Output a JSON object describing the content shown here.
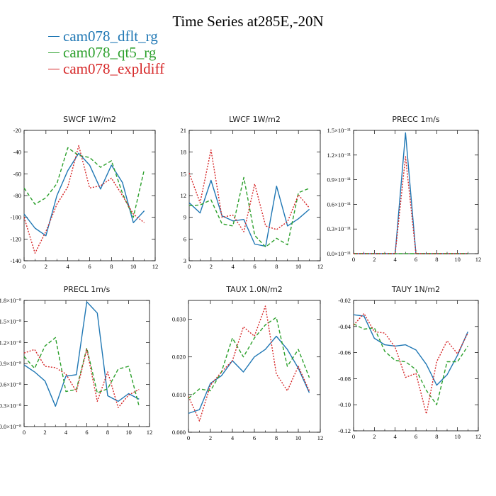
{
  "title": "Time Series at285E,-20N",
  "legend": [
    {
      "name": "cam078_dflt_rg",
      "color": "#1f77b4"
    },
    {
      "name": "cam078_qt5_rg",
      "color": "#2ca02c"
    },
    {
      "name": "cam078_expldiff",
      "color": "#d62728"
    }
  ],
  "chart_data": [
    {
      "type": "line",
      "title": "SWCF   1W/m2",
      "x": [
        0,
        1,
        2,
        3,
        4,
        5,
        6,
        7,
        8,
        9,
        10,
        11
      ],
      "xlim": [
        0,
        12
      ],
      "xticks": [
        "0",
        "2",
        "4",
        "6",
        "8",
        "10",
        "12"
      ],
      "xtick_values": [
        0,
        2,
        4,
        6,
        8,
        10,
        12
      ],
      "ylim": [
        -140,
        -20
      ],
      "yticks": [
        "-140",
        "-120",
        "-100",
        "-80",
        "-60",
        "-40",
        "-20"
      ],
      "ytick_values": [
        -140,
        -120,
        -100,
        -80,
        -60,
        -40,
        -20
      ],
      "series": [
        {
          "name": "cam078_dflt_rg",
          "values": [
            -97,
            -110,
            -117,
            -80,
            -57,
            -41,
            -52,
            -74,
            -52,
            -68,
            -105,
            -94
          ]
        },
        {
          "name": "cam078_qt5_rg",
          "values": [
            -73,
            -88,
            -82,
            -69,
            -36,
            -43,
            -45,
            -54,
            -48,
            -78,
            -100,
            -56
          ]
        },
        {
          "name": "cam078_expldiff",
          "values": [
            -100,
            -133,
            -113,
            -88,
            -72,
            -34,
            -73,
            -71,
            -64,
            -80,
            -97,
            -105
          ]
        }
      ]
    },
    {
      "type": "line",
      "title": "LWCF   1W/m2",
      "x": [
        0,
        1,
        2,
        3,
        4,
        5,
        6,
        7,
        8,
        9,
        10,
        11
      ],
      "xlim": [
        0,
        12
      ],
      "xticks": [
        "0",
        "2",
        "4",
        "6",
        "8",
        "10",
        "12"
      ],
      "xtick_values": [
        0,
        2,
        4,
        6,
        8,
        10,
        12
      ],
      "ylim": [
        3,
        21
      ],
      "yticks": [
        "3",
        "6",
        "9",
        "12",
        "15",
        "18",
        "21"
      ],
      "ytick_values": [
        3,
        6,
        9,
        12,
        15,
        18,
        21
      ],
      "series": [
        {
          "name": "cam078_dflt_rg",
          "values": [
            11,
            9.6,
            14.1,
            9.2,
            8.5,
            8.7,
            5.3,
            5.0,
            13.3,
            7.8,
            8.8,
            10.1
          ]
        },
        {
          "name": "cam078_qt5_rg",
          "values": [
            10.6,
            10.7,
            11.4,
            8.1,
            7.8,
            14.5,
            6.5,
            4.9,
            6.1,
            5.2,
            12.4,
            13.0
          ]
        },
        {
          "name": "cam078_expldiff",
          "values": [
            15.1,
            11.0,
            18.3,
            9.0,
            9.3,
            7.0,
            13.6,
            7.8,
            7.3,
            8.4,
            12.1,
            10.3
          ]
        }
      ]
    },
    {
      "type": "line",
      "title": "PRECC   1m/s",
      "x": [
        0,
        1,
        2,
        3,
        4,
        5,
        6,
        7,
        8,
        9,
        10,
        11
      ],
      "xlim": [
        0,
        12
      ],
      "xticks": [
        "0",
        "2",
        "4",
        "6",
        "8",
        "10",
        "12"
      ],
      "xtick_values": [
        0,
        2,
        4,
        6,
        8,
        10,
        12
      ],
      "ylim": [
        0,
        1.5
      ],
      "yticks": [
        "0.0×10⁻¹¹",
        "0.3×10⁻¹¹",
        "0.6×10⁻¹¹",
        "0.9×10⁻¹¹",
        "1.2×10⁻¹¹",
        "1.5×10⁻¹¹"
      ],
      "ytick_values": [
        0,
        0.3,
        0.6,
        0.9,
        1.2,
        1.5
      ],
      "series": [
        {
          "name": "cam078_dflt_rg",
          "values": [
            0,
            0,
            0,
            0,
            0,
            1.47,
            0,
            0,
            0,
            0,
            0,
            0
          ]
        },
        {
          "name": "cam078_qt5_rg",
          "values": [
            0,
            0,
            0,
            0,
            0,
            0,
            0,
            0,
            0,
            0,
            0,
            0
          ]
        },
        {
          "name": "cam078_expldiff",
          "values": [
            0,
            0,
            0,
            0,
            0,
            1.18,
            0,
            0,
            0,
            0,
            0,
            0
          ]
        }
      ]
    },
    {
      "type": "line",
      "title": "PRECL   1m/s",
      "x": [
        0,
        1,
        2,
        3,
        4,
        5,
        6,
        7,
        8,
        9,
        10,
        11
      ],
      "xlim": [
        0,
        12
      ],
      "xticks": [
        "0",
        "2",
        "4",
        "6",
        "8",
        "10",
        "12"
      ],
      "xtick_values": [
        0,
        2,
        4,
        6,
        8,
        10,
        12
      ],
      "ylim": [
        0,
        1.8
      ],
      "yticks": [
        "0.0×10⁻⁸",
        "0.3×10⁻⁸",
        "0.6×10⁻⁸",
        "0.9×10⁻⁸",
        "1.2×10⁻⁸",
        "1.5×10⁻⁸",
        "1.8×10⁻⁸"
      ],
      "ytick_values": [
        0,
        0.3,
        0.6,
        0.9,
        1.2,
        1.5,
        1.8
      ],
      "series": [
        {
          "name": "cam078_dflt_rg",
          "values": [
            0.88,
            0.78,
            0.65,
            0.29,
            0.72,
            0.74,
            1.78,
            1.62,
            0.44,
            0.36,
            0.47,
            0.39
          ]
        },
        {
          "name": "cam078_qt5_rg",
          "values": [
            1.0,
            0.83,
            1.15,
            1.27,
            0.5,
            0.53,
            1.12,
            0.48,
            0.54,
            0.82,
            0.86,
            0.29
          ]
        },
        {
          "name": "cam078_expldiff",
          "values": [
            1.05,
            1.1,
            0.86,
            0.84,
            0.75,
            0.5,
            1.1,
            0.36,
            0.78,
            0.27,
            0.45,
            0.53
          ]
        }
      ]
    },
    {
      "type": "line",
      "title": "TAUX   1.0N/m2",
      "x": [
        0,
        1,
        2,
        3,
        4,
        5,
        6,
        7,
        8,
        9,
        10,
        11
      ],
      "xlim": [
        0,
        12
      ],
      "xticks": [
        "0",
        "2",
        "4",
        "6",
        "8",
        "10",
        "12"
      ],
      "xtick_values": [
        0,
        2,
        4,
        6,
        8,
        10,
        12
      ],
      "ylim": [
        0,
        0.035
      ],
      "yticks": [
        "0.000",
        "0.010",
        "0.020",
        "0.030"
      ],
      "ytick_values": [
        0,
        0.01,
        0.02,
        0.03
      ],
      "series": [
        {
          "name": "cam078_dflt_rg",
          "values": [
            0.005,
            0.006,
            0.013,
            0.015,
            0.019,
            0.016,
            0.02,
            0.022,
            0.0255,
            0.022,
            0.017,
            0.0105
          ]
        },
        {
          "name": "cam078_qt5_rg",
          "values": [
            0.009,
            0.0115,
            0.011,
            0.016,
            0.025,
            0.02,
            0.025,
            0.0285,
            0.0305,
            0.0175,
            0.022,
            0.0145
          ]
        },
        {
          "name": "cam078_expldiff",
          "values": [
            0.0095,
            0.003,
            0.0125,
            0.016,
            0.019,
            0.028,
            0.0255,
            0.0335,
            0.0155,
            0.011,
            0.0175,
            0.011
          ]
        }
      ]
    },
    {
      "type": "line",
      "title": "TAUY   1N/m2",
      "x": [
        0,
        1,
        2,
        3,
        4,
        5,
        6,
        7,
        8,
        9,
        10,
        11
      ],
      "xlim": [
        0,
        12
      ],
      "xticks": [
        "0",
        "2",
        "4",
        "6",
        "8",
        "10",
        "12"
      ],
      "xtick_values": [
        0,
        2,
        4,
        6,
        8,
        10,
        12
      ],
      "ylim": [
        -0.12,
        -0.02
      ],
      "yticks": [
        "-0.12",
        "-0.10",
        "-0.08",
        "-0.06",
        "-0.04",
        "-0.02"
      ],
      "ytick_values": [
        -0.12,
        -0.1,
        -0.08,
        -0.06,
        -0.04,
        -0.02
      ],
      "series": [
        {
          "name": "cam078_dflt_rg",
          "values": [
            -0.031,
            -0.032,
            -0.049,
            -0.054,
            -0.055,
            -0.054,
            -0.058,
            -0.069,
            -0.085,
            -0.077,
            -0.062,
            -0.044
          ]
        },
        {
          "name": "cam078_qt5_rg",
          "values": [
            -0.038,
            -0.042,
            -0.041,
            -0.059,
            -0.066,
            -0.067,
            -0.073,
            -0.089,
            -0.1,
            -0.067,
            -0.067,
            -0.055
          ]
        },
        {
          "name": "cam078_expldiff",
          "values": [
            -0.039,
            -0.03,
            -0.044,
            -0.045,
            -0.056,
            -0.079,
            -0.076,
            -0.107,
            -0.067,
            -0.051,
            -0.061,
            -0.045
          ]
        }
      ]
    }
  ]
}
